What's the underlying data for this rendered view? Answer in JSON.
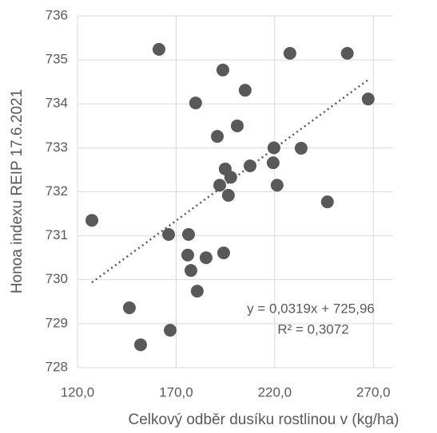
{
  "chart_data": {
    "type": "scatter",
    "x_label": "Celkový odběr dusíku rostlinou v (kg/ha)",
    "y_label": "Honoa indexu REIP 17.6.2021",
    "annotations": [
      "y = 0,0319x + 725,96",
      "R² = 0,3072"
    ],
    "series": [
      {
        "color": "#595959",
        "x": [
          127.3,
          161.3,
          146.3,
          152.0,
          166.2,
          167.0,
          176.3,
          175.9,
          177.5,
          179.9,
          180.7,
          185.2,
          190.9,
          192.1,
          193.7,
          194.1,
          194.9,
          196.5,
          197.7,
          201.0,
          205.0,
          207.5,
          219.6,
          219.2,
          221.2,
          227.7,
          233.4,
          246.7,
          256.8,
          267.4
        ],
        "values": [
          731.35,
          735.24,
          729.36,
          728.52,
          731.03,
          728.85,
          731.03,
          730.56,
          730.21,
          734.02,
          729.74,
          730.5,
          733.26,
          732.15,
          734.77,
          730.61,
          732.52,
          731.92,
          732.33,
          733.5,
          734.31,
          732.59,
          733.0,
          732.66,
          732.15,
          735.15,
          732.99,
          731.77,
          735.15,
          734.11
        ]
      }
    ],
    "trendline": {
      "style": "dotted",
      "color": "#595959"
    },
    "xlim": [
      120,
      280
    ],
    "xticks": [
      {
        "value": 120,
        "label": "120,0"
      },
      {
        "value": 170,
        "label": "170,0"
      },
      {
        "value": 220,
        "label": "220,0"
      },
      {
        "value": 270,
        "label": "270,0"
      }
    ],
    "ylim": [
      728,
      736
    ],
    "yticks": [
      728,
      729,
      730,
      731,
      732,
      733,
      734,
      735,
      736
    ],
    "grid": true
  }
}
